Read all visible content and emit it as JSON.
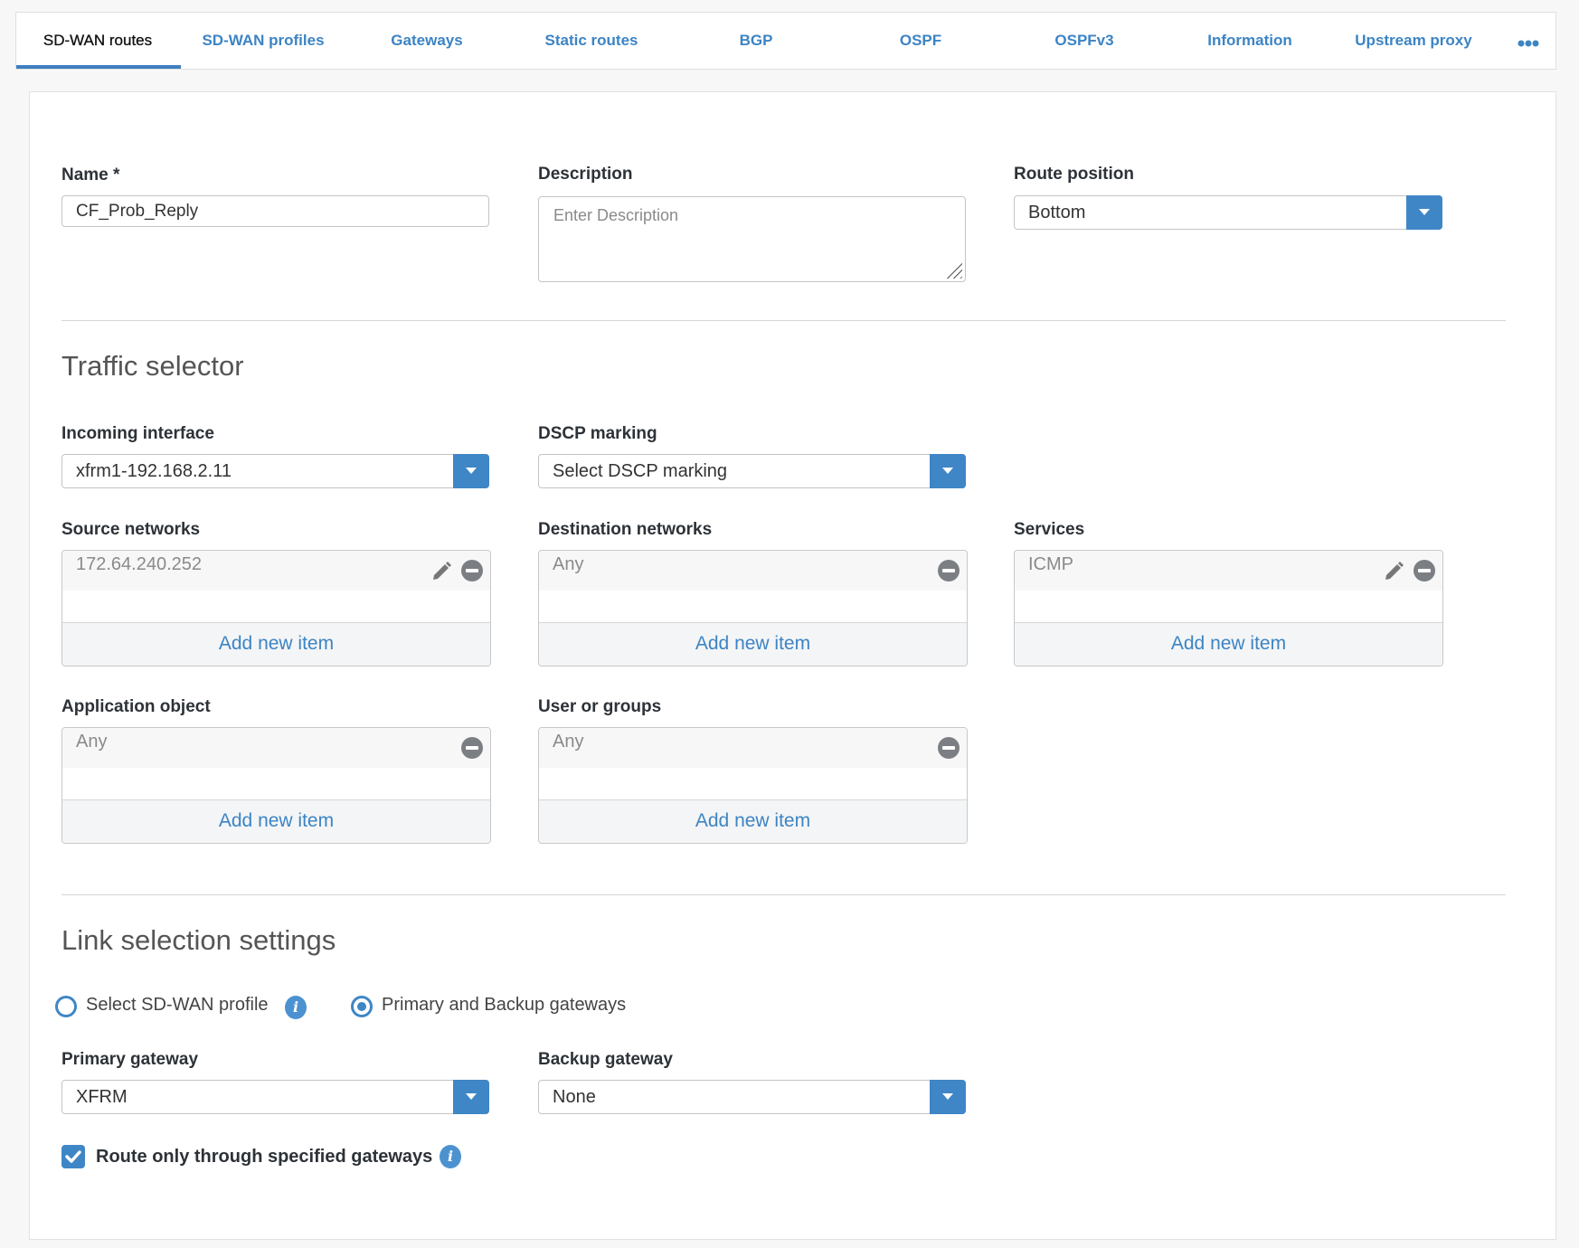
{
  "tabs": [
    {
      "label": "SD-WAN routes",
      "active": true
    },
    {
      "label": "SD-WAN profiles"
    },
    {
      "label": "Gateways"
    },
    {
      "label": "Static routes"
    },
    {
      "label": "BGP"
    },
    {
      "label": "OSPF"
    },
    {
      "label": "OSPFv3"
    },
    {
      "label": "Information"
    },
    {
      "label": "Upstream proxy"
    }
  ],
  "more_icon": "ellipsis-icon",
  "form": {
    "name_label": "Name *",
    "name_value": "CF_Prob_Reply",
    "description_label": "Description",
    "description_placeholder": "Enter Description",
    "route_position_label": "Route position",
    "route_position_value": "Bottom"
  },
  "traffic": {
    "heading": "Traffic selector",
    "incoming_label": "Incoming interface",
    "incoming_value": "xfrm1-192.168.2.11",
    "dscp_label": "DSCP marking",
    "dscp_value": "Select DSCP marking",
    "source_label": "Source networks",
    "source_item": "172.64.240.252",
    "dest_label": "Destination networks",
    "dest_item": "Any",
    "services_label": "Services",
    "services_item": "ICMP",
    "app_label": "Application object",
    "app_item": "Any",
    "users_label": "User or groups",
    "users_item": "Any",
    "add_label": "Add new item"
  },
  "link": {
    "heading": "Link selection settings",
    "radio_profile": "Select SD-WAN profile",
    "radio_gateways": "Primary and Backup gateways",
    "selected": "Primary and Backup gateways",
    "primary_label": "Primary gateway",
    "primary_value": "XFRM",
    "backup_label": "Backup gateway",
    "backup_value": "None",
    "route_only_label": "Route only through specified gateways",
    "route_only_checked": true
  },
  "colors": {
    "accent": "#3f86c6",
    "tab_text": "#3c84c4"
  }
}
